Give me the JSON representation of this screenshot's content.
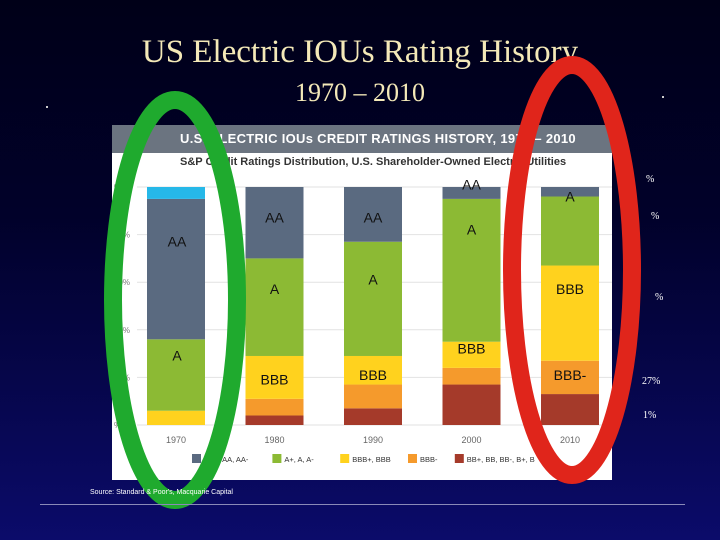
{
  "title": "US Electric IOUs Rating History",
  "subtitle": "1970 – 2010",
  "panel": {
    "header": "U.S. ELECTRIC IOUs CREDIT RATINGS HISTORY, 1970 – 2010",
    "subheader": "S&P Credit Ratings Distribution, U.S. Shareholder-Owned Electric Utilities"
  },
  "source": "Source: Standard & Poor's, Macquarie Capital",
  "side_labels": [
    "%",
    "%",
    "%",
    "27%",
    "1%"
  ],
  "chart_data": {
    "type": "bar",
    "stacked": true,
    "categories": [
      "1970",
      "1980",
      "1990",
      "2000",
      "2010"
    ],
    "yticks": [
      "%",
      "80%",
      "60%",
      "40%",
      "20%",
      "%"
    ],
    "ylim": [
      0,
      100
    ],
    "series": [
      {
        "name": "",
        "color": "#26b8e8",
        "values": [
          5,
          0,
          0,
          0,
          0
        ]
      },
      {
        "name": "AA+, AA, AA-",
        "color": "#5a6a80",
        "values": [
          59,
          30,
          23,
          5,
          4
        ]
      },
      {
        "name": "A+, A, A-",
        "color": "#8cba34",
        "values": [
          30,
          41,
          48,
          60,
          29
        ]
      },
      {
        "name": "BBB+, BBB",
        "color": "#ffd21e",
        "values": [
          6,
          18,
          12,
          11,
          40
        ]
      },
      {
        "name": "BBB-",
        "color": "#f59a2c",
        "values": [
          0,
          7,
          10,
          7,
          14
        ]
      },
      {
        "name": "BB+, BB, BB-, B+, B",
        "color": "#a53a2a",
        "values": [
          0,
          4,
          7,
          17,
          13
        ]
      }
    ],
    "annotations": [
      {
        "text": "AA",
        "category": "1980",
        "value": 85
      },
      {
        "text": "A",
        "category": "1980",
        "value": 55
      },
      {
        "text": "BBB",
        "category": "1980",
        "value": 17
      },
      {
        "text": "AA",
        "category": "1990",
        "value": 85
      },
      {
        "text": "A",
        "category": "1990",
        "value": 59
      },
      {
        "text": "BBB",
        "category": "1990",
        "value": 19
      },
      {
        "text": "AA",
        "category": "2000",
        "value": 99
      },
      {
        "text": "A",
        "category": "2000",
        "value": 80
      },
      {
        "text": "BBB",
        "category": "2000",
        "value": 30
      },
      {
        "text": "A",
        "category": "2010",
        "value": 94
      },
      {
        "text": "BBB",
        "category": "2010",
        "value": 55
      },
      {
        "text": "BBB-",
        "category": "2010",
        "value": 19
      },
      {
        "text": "AA",
        "category": "1970",
        "value": 75
      },
      {
        "text": "A",
        "category": "1970",
        "value": 27
      }
    ],
    "title": "U.S. ELECTRIC IOUs CREDIT RATINGS HISTORY, 1970 – 2010",
    "subtitle": "S&P Credit Ratings Distribution, U.S. Shareholder-Owned Electric Utilities"
  }
}
